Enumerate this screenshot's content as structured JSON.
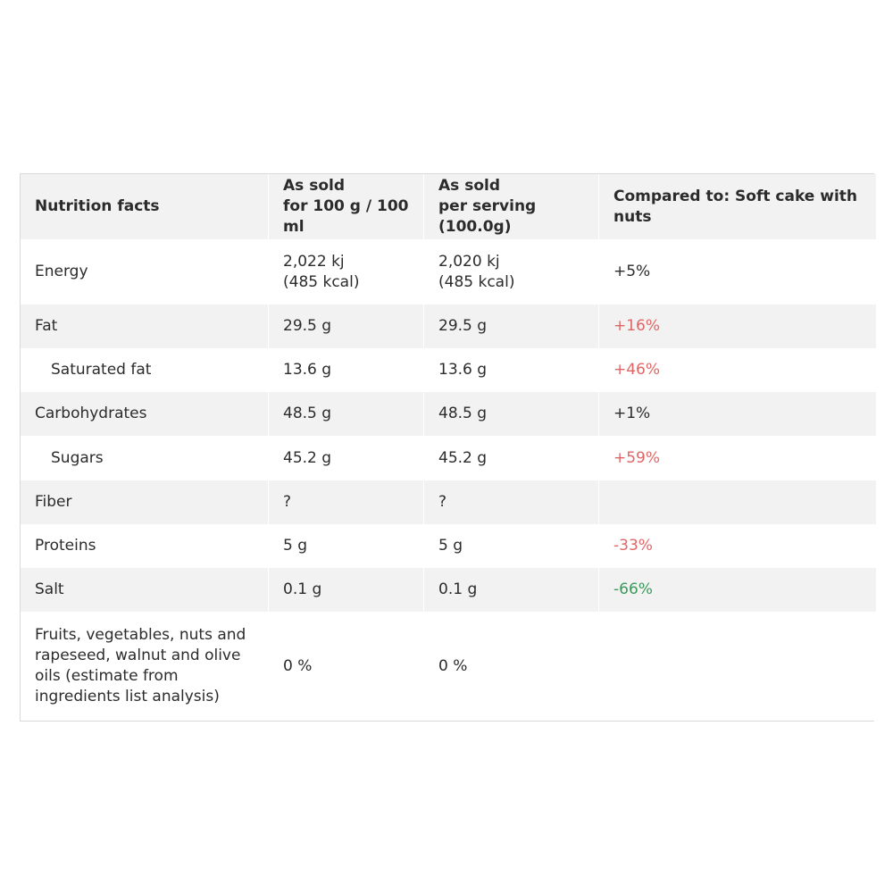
{
  "colors": {
    "header_bg": "#f2f2f2",
    "row_shade": "#f2f2f2",
    "worse": "#e06666",
    "better": "#3b9a5b",
    "border": "#d9d9d9"
  },
  "table": {
    "headers": {
      "col1": "Nutrition facts",
      "col2": "As sold\nfor 100 g / 100 ml",
      "col3": "As sold\nper serving (100.0g)",
      "col4": "Compared to: Soft cake with nuts"
    },
    "rows": [
      {
        "name": "Energy",
        "per100": "2,022 kj\n(485 kcal)",
        "serving": "2,020 kj\n(485 kcal)",
        "compare": "+5%",
        "compare_status": "neutral"
      },
      {
        "name": "Fat",
        "per100": "29.5 g",
        "serving": "29.5 g",
        "compare": "+16%",
        "compare_status": "worse"
      },
      {
        "name": "Saturated fat",
        "per100": "13.6 g",
        "serving": "13.6 g",
        "compare": "+46%",
        "compare_status": "worse"
      },
      {
        "name": "Carbohydrates",
        "per100": "48.5 g",
        "serving": "48.5 g",
        "compare": "+1%",
        "compare_status": "neutral"
      },
      {
        "name": "Sugars",
        "per100": "45.2 g",
        "serving": "45.2 g",
        "compare": "+59%",
        "compare_status": "worse"
      },
      {
        "name": "Fiber",
        "per100": "?",
        "serving": "?",
        "compare": "",
        "compare_status": "neutral"
      },
      {
        "name": "Proteins",
        "per100": "5 g",
        "serving": "5 g",
        "compare": "-33%",
        "compare_status": "worse"
      },
      {
        "name": "Salt",
        "per100": "0.1 g",
        "serving": "0.1 g",
        "compare": "-66%",
        "compare_status": "better"
      },
      {
        "name": "Fruits, vegetables, nuts and\nrapeseed, walnut and olive\noils (estimate from\ningredients list analysis)",
        "per100": "0 %",
        "serving": "0 %",
        "compare": "",
        "compare_status": "neutral"
      }
    ]
  }
}
